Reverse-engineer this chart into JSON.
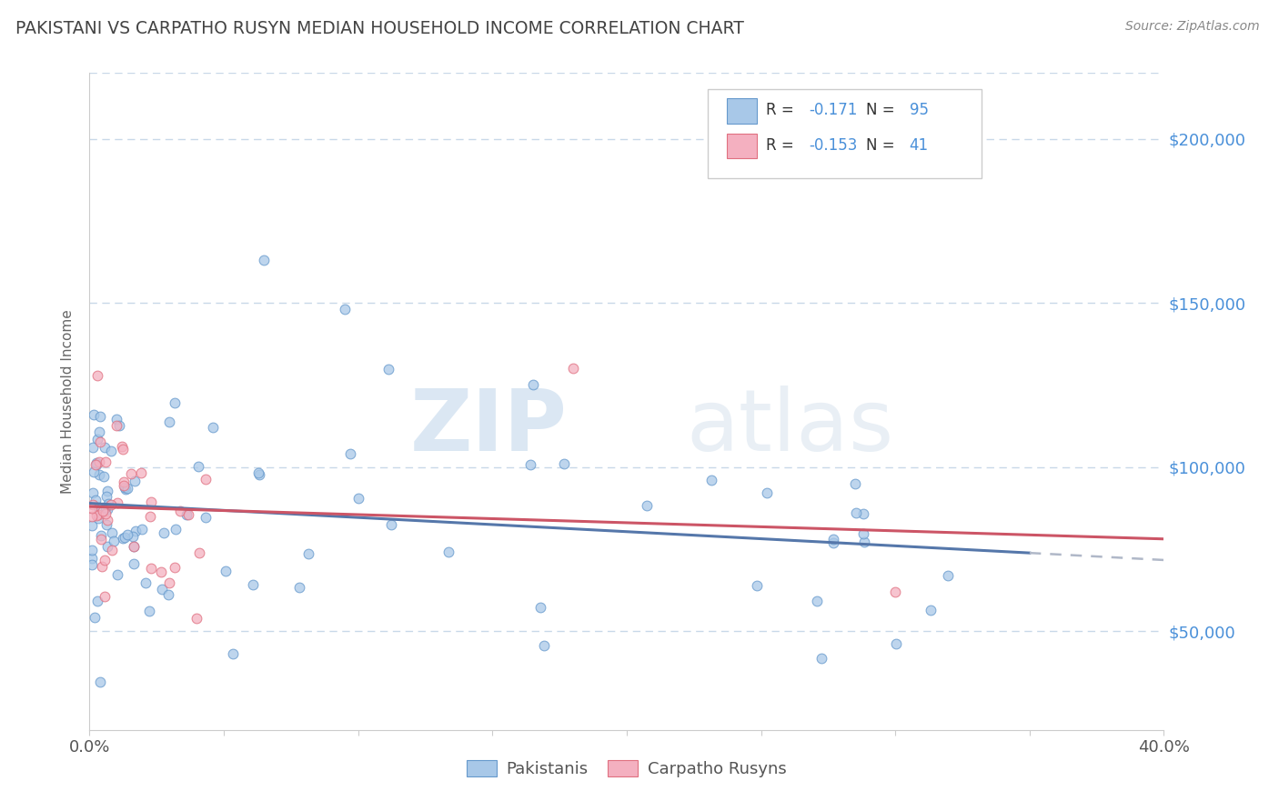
{
  "title": "PAKISTANI VS CARPATHO RUSYN MEDIAN HOUSEHOLD INCOME CORRELATION CHART",
  "source_text": "Source: ZipAtlas.com",
  "ylabel": "Median Household Income",
  "watermark_zip": "ZIP",
  "watermark_atlas": "atlas",
  "xlim": [
    0.0,
    0.4
  ],
  "ylim": [
    20000,
    220000
  ],
  "yticks": [
    50000,
    100000,
    150000,
    200000
  ],
  "ytick_labels": [
    "$50,000",
    "$100,000",
    "$150,000",
    "$200,000"
  ],
  "xticks": [
    0.0,
    0.05,
    0.1,
    0.15,
    0.2,
    0.25,
    0.3,
    0.35,
    0.4
  ],
  "xtick_labels_show": [
    "0.0%",
    "",
    "",
    "",
    "",
    "",
    "",
    "",
    "40.0%"
  ],
  "legend_labels_bottom": [
    "Pakistanis",
    "Carpatho Rusyns"
  ],
  "pakistani_fill": "#a8c8e8",
  "pakistani_edge": "#6699cc",
  "carpatho_fill": "#f4b0c0",
  "carpatho_edge": "#e07080",
  "trend_pak_color": "#5577aa",
  "trend_carp_color": "#cc5566",
  "dash_ext_color": "#b0b8c8",
  "background_color": "#ffffff",
  "grid_color": "#c8d8e8",
  "grid_style": "--",
  "ytick_color": "#4a90d9",
  "title_color": "#444444",
  "source_color": "#888888",
  "legend_text_color": "#333333",
  "legend_num_color": "#4a90d9",
  "watermark_color": "#d0e4f4"
}
